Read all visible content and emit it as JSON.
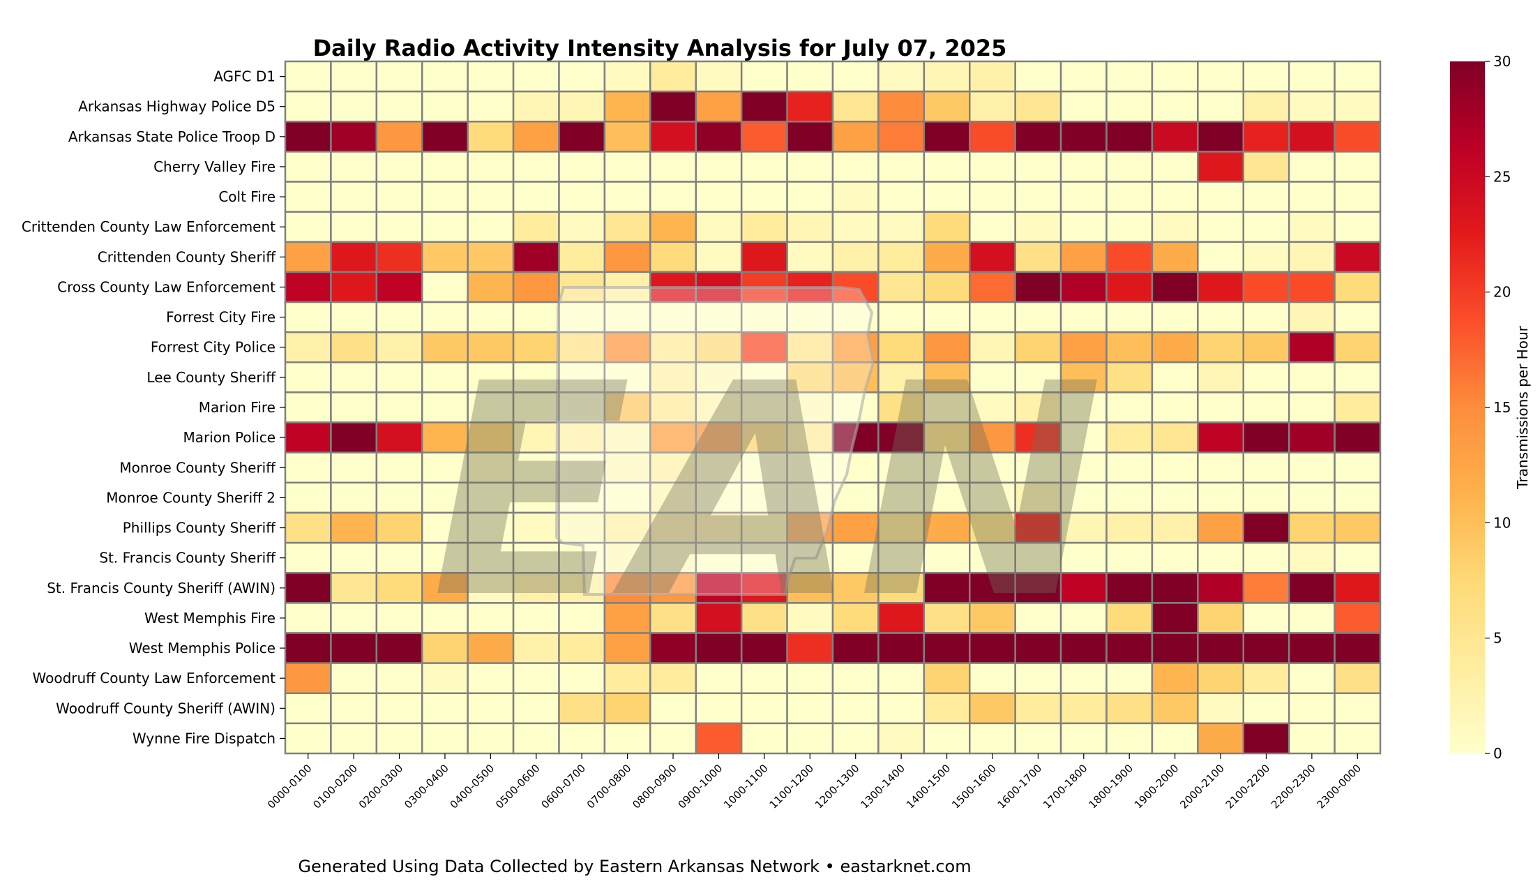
{
  "chart_data": {
    "type": "heatmap",
    "title": "Daily Radio Activity Intensity Analysis for July 07, 2025",
    "colorbar_label": "Transmissions per Hour",
    "colorbar_ticks": [
      0,
      5,
      10,
      15,
      20,
      25,
      30
    ],
    "vmin": 0,
    "vmax": 30,
    "colormap": [
      "#ffffcc",
      "#ffeda0",
      "#fed976",
      "#feb24c",
      "#fd8d3c",
      "#fc4e2a",
      "#e31a1c",
      "#bd0026",
      "#800026"
    ],
    "grid_color": "#808080",
    "footer": "Generated Using Data Collected by Eastern Arkansas Network • eastarknet.com",
    "watermark": "EAN",
    "columns": [
      "0000-0100",
      "0100-0200",
      "0200-0300",
      "0300-0400",
      "0400-0500",
      "0500-0600",
      "0600-0700",
      "0700-0800",
      "0800-0900",
      "0900-1000",
      "1000-1100",
      "1100-1200",
      "1200-1300",
      "1300-1400",
      "1400-1500",
      "1500-1600",
      "1600-1700",
      "1700-1800",
      "1800-1900",
      "1900-2000",
      "2000-2100",
      "2100-2200",
      "2200-2300",
      "2300-0000"
    ],
    "rows": [
      {
        "label": "AGFC D1",
        "values": [
          0,
          0,
          0,
          0,
          0,
          0,
          0,
          1,
          4,
          1,
          0,
          0,
          0,
          1,
          2,
          3,
          0,
          0,
          0,
          0,
          0,
          0,
          0,
          0
        ]
      },
      {
        "label": "Arkansas Highway Police D5",
        "values": [
          0,
          0,
          0,
          0,
          0,
          2,
          2,
          11,
          30,
          13,
          30,
          22,
          5,
          15,
          9,
          3,
          5,
          0,
          0,
          0,
          0,
          3,
          1,
          1
        ]
      },
      {
        "label": "Arkansas State Police Troop D",
        "values": [
          30,
          28,
          14,
          30,
          7,
          13,
          30,
          10,
          24,
          29,
          18,
          30,
          13,
          16,
          30,
          19,
          30,
          30,
          30,
          25,
          30,
          22,
          24,
          19
        ]
      },
      {
        "label": "Cherry Valley Fire",
        "values": [
          0,
          0,
          0,
          0,
          0,
          0,
          0,
          0,
          0,
          0,
          0,
          0,
          0,
          0,
          0,
          0,
          0,
          0,
          0,
          0,
          23,
          5,
          0,
          0
        ]
      },
      {
        "label": "Colt Fire",
        "values": [
          0,
          0,
          0,
          0,
          0,
          0,
          0,
          0,
          0,
          0,
          0,
          0,
          1,
          0,
          0,
          0,
          0,
          0,
          0,
          0,
          0,
          0,
          0,
          0
        ]
      },
      {
        "label": "Crittenden County Law Enforcement",
        "values": [
          0,
          0,
          0,
          0,
          0,
          4,
          1,
          5,
          11,
          1,
          4,
          2,
          1,
          1,
          7,
          0,
          1,
          0,
          0,
          1,
          0,
          0,
          1,
          0
        ]
      },
      {
        "label": "Crittenden County Sheriff",
        "values": [
          13,
          23,
          21,
          9,
          9,
          28,
          4,
          14,
          7,
          1,
          23,
          1,
          3,
          4,
          12,
          24,
          6,
          13,
          19,
          12,
          0,
          1,
          2,
          25
        ]
      },
      {
        "label": "Cross County Law Enforcement",
        "values": [
          26,
          23,
          26,
          0,
          11,
          14,
          5,
          3,
          23,
          24,
          20,
          22,
          19,
          5,
          7,
          17,
          30,
          27,
          23,
          30,
          23,
          19,
          19,
          7
        ]
      },
      {
        "label": "Forrest City Fire",
        "values": [
          0,
          0,
          0,
          0,
          0,
          0,
          0,
          0,
          0,
          0,
          0,
          0,
          0,
          0,
          0,
          0,
          0,
          0,
          0,
          0,
          0,
          0,
          2,
          0
        ]
      },
      {
        "label": "Forrest City Police",
        "values": [
          3,
          6,
          3,
          9,
          9,
          8,
          6,
          14,
          4,
          7,
          19,
          5,
          13,
          7,
          14,
          2,
          8,
          13,
          10,
          12,
          8,
          9,
          27,
          8
        ]
      },
      {
        "label": "Lee County Sheriff",
        "values": [
          0,
          0,
          0,
          0,
          0,
          0,
          0,
          0,
          3,
          1,
          0,
          7,
          10,
          3,
          10,
          0,
          0,
          10,
          6,
          0,
          2,
          0,
          0,
          0
        ]
      },
      {
        "label": "Marion Fire",
        "values": [
          0,
          0,
          0,
          0,
          0,
          0,
          0,
          9,
          4,
          2,
          1,
          1,
          0,
          6,
          1,
          1,
          3,
          0,
          0,
          0,
          0,
          0,
          0,
          4
        ]
      },
      {
        "label": "Marion Police",
        "values": [
          26,
          30,
          24,
          11,
          8,
          2,
          3,
          1,
          13,
          14,
          8,
          4,
          30,
          30,
          6,
          14,
          21,
          0,
          4,
          5,
          26,
          30,
          28,
          30
        ]
      },
      {
        "label": "Monroe County Sheriff",
        "values": [
          0,
          0,
          0,
          0,
          1,
          0,
          0,
          1,
          3,
          1,
          0,
          0,
          0,
          0,
          0,
          0,
          0,
          0,
          0,
          0,
          0,
          0,
          0,
          0
        ]
      },
      {
        "label": "Monroe County Sheriff 2",
        "values": [
          0,
          0,
          0,
          0,
          0,
          0,
          0,
          0,
          2,
          0,
          0,
          0,
          0,
          0,
          0,
          0,
          2,
          0,
          0,
          0,
          0,
          0,
          0,
          0
        ]
      },
      {
        "label": "Phillips County Sheriff",
        "values": [
          6,
          11,
          8,
          0,
          0,
          1,
          1,
          3,
          4,
          4,
          3,
          13,
          13,
          5,
          12,
          6,
          22,
          2,
          3,
          3,
          13,
          30,
          8,
          9
        ]
      },
      {
        "label": "St. Francis County Sheriff",
        "values": [
          0,
          0,
          0,
          0,
          0,
          0,
          0,
          1,
          1,
          0,
          0,
          0,
          0,
          0,
          0,
          0,
          0,
          0,
          0,
          0,
          0,
          0,
          1,
          0
        ]
      },
      {
        "label": "St. Francis County Sheriff (AWIN)",
        "values": [
          30,
          5,
          7,
          12,
          1,
          3,
          3,
          15,
          14,
          26,
          23,
          10,
          9,
          7,
          30,
          30,
          30,
          26,
          30,
          30,
          27,
          16,
          30,
          23
        ]
      },
      {
        "label": "West Memphis Fire",
        "values": [
          0,
          0,
          0,
          0,
          0,
          0,
          0,
          13,
          6,
          24,
          6,
          1,
          7,
          23,
          6,
          9,
          0,
          0,
          7,
          30,
          8,
          0,
          0,
          18
        ]
      },
      {
        "label": "West Memphis Police",
        "values": [
          30,
          30,
          30,
          8,
          12,
          3,
          4,
          13,
          29,
          30,
          30,
          21,
          30,
          30,
          30,
          30,
          30,
          30,
          30,
          30,
          30,
          30,
          30,
          30
        ]
      },
      {
        "label": "Woodruff County Law Enforcement",
        "values": [
          14,
          0,
          0,
          1,
          0,
          0,
          0,
          4,
          4,
          0,
          0,
          0,
          0,
          0,
          8,
          0,
          0,
          0,
          0,
          11,
          8,
          4,
          0,
          6
        ]
      },
      {
        "label": "Woodruff County Sheriff (AWIN)",
        "values": [
          0,
          0,
          0,
          0,
          0,
          0,
          6,
          8,
          0,
          0,
          0,
          0,
          0,
          0,
          4,
          9,
          4,
          4,
          6,
          9,
          1,
          0,
          0,
          0
        ]
      },
      {
        "label": "Wynne Fire Dispatch",
        "values": [
          0,
          0,
          0,
          0,
          0,
          0,
          0,
          0,
          0,
          18,
          0,
          0,
          0,
          1,
          0,
          0,
          0,
          0,
          0,
          0,
          12,
          30,
          0,
          0
        ]
      }
    ]
  }
}
